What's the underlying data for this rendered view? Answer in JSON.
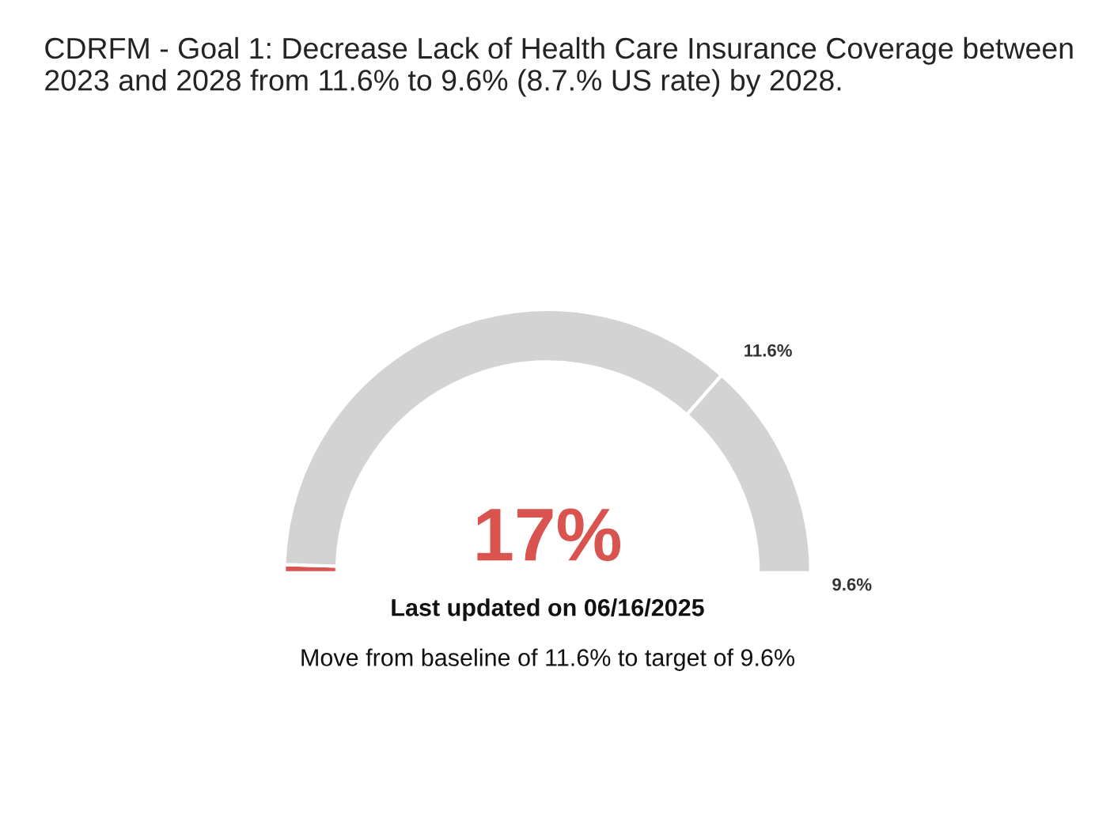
{
  "chart_data": {
    "type": "donut",
    "title": "CDRFM - Goal 1: Decrease Lack of Health Care Insurance Coverage between 2023 and 2028 from 11.6% to 9.6% (8.7.% US rate) by 2028.",
    "categories": [
      null,
      null,
      null
    ],
    "values": [
      1,
      72,
      27
    ],
    "colors": [
      "#d9534f",
      "#d3d3d3",
      "#d3d3d3"
    ],
    "annotations": [
      "11.6%",
      "9.6%",
      "17%",
      "Last updated on 06/16/2025",
      "Move from baseline of 11.6% to target of 9.6%"
    ]
  }
}
